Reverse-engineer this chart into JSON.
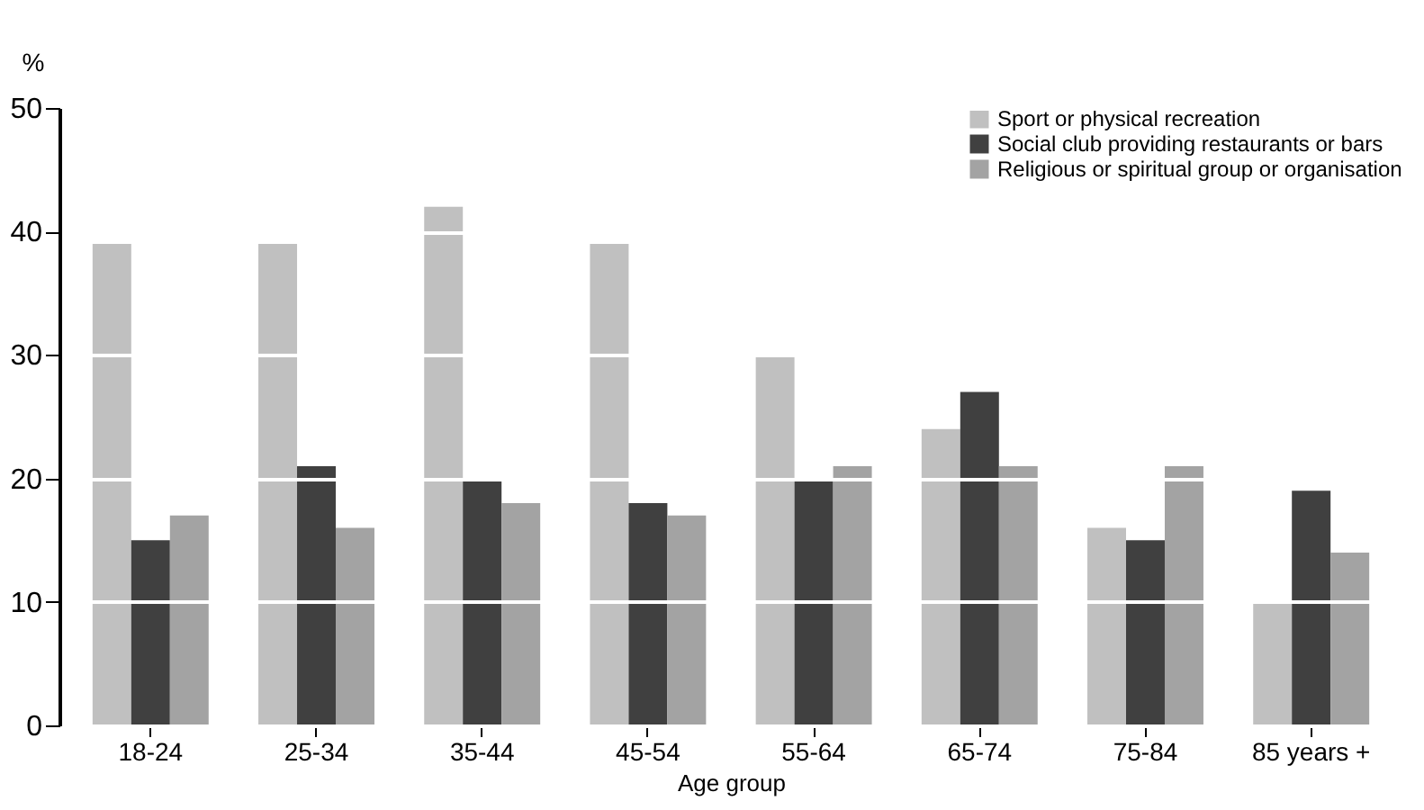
{
  "chart_data": {
    "type": "bar",
    "xlabel": "Age group",
    "ylabel": "%",
    "categories": [
      "18-24",
      "25-34",
      "35-44",
      "45-54",
      "55-64",
      "65-74",
      "75-84",
      "85 years +"
    ],
    "series": [
      {
        "name": "Sport or physical recreation",
        "color": "#c0c0c0",
        "values": [
          39,
          39,
          42,
          39,
          30,
          24,
          16,
          10
        ]
      },
      {
        "name": "Social club providing restaurants or bars",
        "color": "#404040",
        "values": [
          15,
          21,
          20,
          18,
          20,
          27,
          15,
          19
        ]
      },
      {
        "name": "Religious or spiritual group or organisation",
        "color": "#a3a3a3",
        "values": [
          17,
          16,
          18,
          17,
          21,
          21,
          21,
          14
        ]
      }
    ],
    "ylim": [
      0,
      50
    ],
    "yticks": [
      0,
      10,
      20,
      30,
      40,
      50
    ],
    "grid": "y",
    "legend": "top right"
  }
}
